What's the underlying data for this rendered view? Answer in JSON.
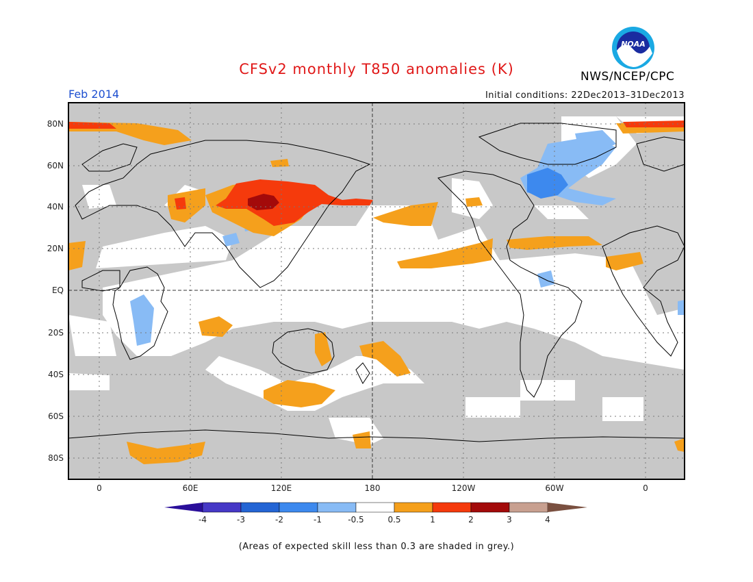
{
  "header": {
    "title": "CFSv2 monthly T850 anomalies (K)",
    "month": "Feb 2014",
    "initial_conditions": "Initial conditions: 22Dec2013–31Dec2013",
    "agency": "NWS/NCEP/CPC",
    "logo_text": "NOAA",
    "logo_icon": "noaa-logo-icon"
  },
  "map": {
    "lat_labels": [
      "80N",
      "60N",
      "40N",
      "20N",
      "EQ",
      "20S",
      "40S",
      "60S",
      "80S"
    ],
    "lon_labels": [
      "0",
      "60E",
      "120E",
      "180",
      "120W",
      "60W",
      "0"
    ],
    "colors": {
      "low_skill_grey": "#c8c8c8",
      "neutral": "#ffffff",
      "warm_0_5_1": "#f5a01c",
      "warm_1_2": "#f53a0c",
      "warm_2_3": "#a30a0a",
      "cool_minus1_minus0_5": "#88bbf5",
      "cool_minus2_minus1": "#3d89ee",
      "coastline": "#000000"
    }
  },
  "colorbar": {
    "labels": [
      "-4",
      "-3",
      "-2",
      "-1",
      "-0.5",
      "0.5",
      "1",
      "2",
      "3",
      "4"
    ],
    "colors": [
      "#2a0f9a",
      "#4638c6",
      "#2465d4",
      "#3d89ee",
      "#88bbf5",
      "#ffffff",
      "#f5a01c",
      "#f53a0c",
      "#a30a0a",
      "#c8a090",
      "#7a5040"
    ]
  },
  "footnote": "(Areas of expected skill less than 0.3 are shaded in grey.)"
}
